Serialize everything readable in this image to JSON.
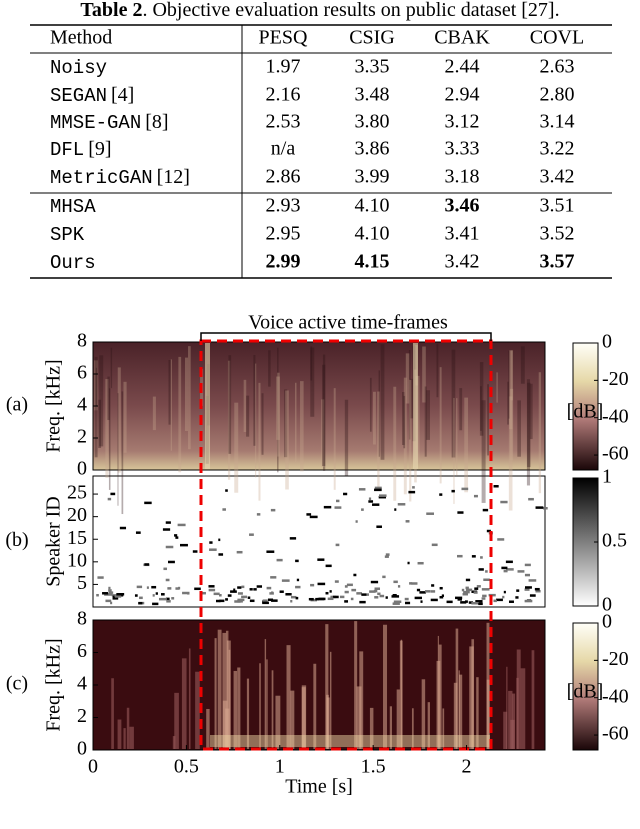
{
  "table": {
    "caption_label": "Table 2",
    "caption": ". Objective evaluation results on public dataset [27].",
    "header": [
      "Method",
      "PESQ",
      "CSIG",
      "CBAK",
      "COVL"
    ],
    "rows": [
      {
        "method": "Noisy",
        "ref": "",
        "values": [
          "1.97",
          "3.35",
          "2.44",
          "2.63"
        ]
      },
      {
        "method": "SEGAN",
        "ref": "[4]",
        "values": [
          "2.16",
          "3.48",
          "2.94",
          "2.80"
        ]
      },
      {
        "method": "MMSE-GAN",
        "ref": "[8]",
        "values": [
          "2.53",
          "3.80",
          "3.12",
          "3.14"
        ]
      },
      {
        "method": "DFL",
        "ref": "[9]",
        "values": [
          "n/a",
          "3.86",
          "3.33",
          "3.22"
        ]
      },
      {
        "method": "MetricGAN",
        "ref": "[12]",
        "values": [
          "2.86",
          "3.99",
          "3.18",
          "3.42"
        ]
      },
      {
        "method": "MHSA",
        "ref": "",
        "values": [
          "2.93",
          "4.10",
          "3.46",
          "3.51"
        ]
      },
      {
        "method": "SPK",
        "ref": "",
        "values": [
          "2.95",
          "4.10",
          "3.41",
          "3.52"
        ]
      },
      {
        "method": "Ours",
        "ref": "",
        "values": [
          "2.99",
          "4.15",
          "3.42",
          "3.57"
        ]
      }
    ],
    "bold": [
      "5.2",
      "7.0",
      "7.1",
      "7.3"
    ]
  },
  "figure": {
    "annotation": "Voice active time-frames",
    "xlabel": "Time [s]",
    "xlim": [
      0,
      2.42
    ],
    "xticks": [
      0,
      0.5,
      1,
      1.5,
      2
    ],
    "panels": [
      {
        "label": "(a)",
        "ylabel": "Freq. [kHz]",
        "ylim": [
          0,
          8
        ],
        "yticks": [
          0,
          2,
          4,
          6,
          8
        ],
        "clim": [
          -68,
          0
        ],
        "cticks": [
          0,
          -20,
          -40,
          -60
        ],
        "cunit": "[dB]"
      },
      {
        "label": "(b)",
        "ylabel": "Speaker ID",
        "ylim": [
          0,
          29
        ],
        "yticks": [
          5,
          10,
          15,
          20,
          25
        ],
        "clim": [
          0,
          1
        ],
        "cticks": [
          1,
          0.5,
          0
        ]
      },
      {
        "label": "(c)",
        "ylabel": "Freq. [kHz]",
        "ylim": [
          0,
          8
        ],
        "yticks": [
          0,
          2,
          4,
          6,
          8
        ],
        "clim": [
          -68,
          0
        ],
        "cticks": [
          0,
          -20,
          -40,
          -60
        ],
        "cunit": "[dB]"
      }
    ]
  }
}
